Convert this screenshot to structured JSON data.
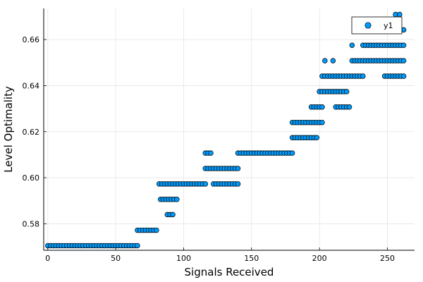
{
  "chart_data": {
    "type": "scatter",
    "title": "",
    "xlabel": "Signals Received",
    "ylabel": "Level Optimality",
    "xlim": [
      -3,
      270
    ],
    "ylim": [
      0.5685,
      0.6735
    ],
    "xticks": [
      0,
      50,
      100,
      150,
      200,
      250
    ],
    "yticks": [
      0.58,
      0.6,
      0.62,
      0.64,
      0.66
    ],
    "ytick_labels": [
      "0.58",
      "0.60",
      "0.62",
      "0.64",
      "0.66"
    ],
    "grid": true,
    "legend": {
      "position": "top-right",
      "entries": [
        "y1"
      ]
    },
    "colors": {
      "marker": "#009AFA",
      "marker_edge": "#000000",
      "grid": "#e5e5e5"
    },
    "series": [
      {
        "name": "y1",
        "points": [
          [
            0,
            0.5705
          ],
          [
            2,
            0.5705
          ],
          [
            4,
            0.5705
          ],
          [
            6,
            0.5705
          ],
          [
            8,
            0.5705
          ],
          [
            10,
            0.5705
          ],
          [
            12,
            0.5705
          ],
          [
            14,
            0.5705
          ],
          [
            16,
            0.5705
          ],
          [
            18,
            0.5705
          ],
          [
            20,
            0.5705
          ],
          [
            22,
            0.5705
          ],
          [
            24,
            0.5705
          ],
          [
            26,
            0.5705
          ],
          [
            28,
            0.5705
          ],
          [
            30,
            0.5705
          ],
          [
            32,
            0.5705
          ],
          [
            34,
            0.5705
          ],
          [
            36,
            0.5705
          ],
          [
            38,
            0.5705
          ],
          [
            40,
            0.5705
          ],
          [
            42,
            0.5705
          ],
          [
            44,
            0.5705
          ],
          [
            46,
            0.5705
          ],
          [
            48,
            0.5705
          ],
          [
            50,
            0.5705
          ],
          [
            52,
            0.5705
          ],
          [
            54,
            0.5705
          ],
          [
            56,
            0.5705
          ],
          [
            58,
            0.5705
          ],
          [
            60,
            0.5705
          ],
          [
            62,
            0.5705
          ],
          [
            64,
            0.5705
          ],
          [
            66,
            0.5705
          ],
          [
            66,
            0.5772
          ],
          [
            68,
            0.5772
          ],
          [
            70,
            0.5772
          ],
          [
            72,
            0.5772
          ],
          [
            74,
            0.5772
          ],
          [
            76,
            0.5772
          ],
          [
            78,
            0.5772
          ],
          [
            80,
            0.5772
          ],
          [
            82,
            0.5973
          ],
          [
            84,
            0.5973
          ],
          [
            86,
            0.5973
          ],
          [
            88,
            0.5973
          ],
          [
            90,
            0.5973
          ],
          [
            92,
            0.5973
          ],
          [
            83,
            0.5906
          ],
          [
            85,
            0.5906
          ],
          [
            87,
            0.5906
          ],
          [
            89,
            0.5906
          ],
          [
            91,
            0.5906
          ],
          [
            93,
            0.5906
          ],
          [
            95,
            0.5906
          ],
          [
            88,
            0.584
          ],
          [
            90,
            0.584
          ],
          [
            92,
            0.584
          ],
          [
            94,
            0.5973
          ],
          [
            96,
            0.5973
          ],
          [
            98,
            0.5973
          ],
          [
            100,
            0.5973
          ],
          [
            102,
            0.5973
          ],
          [
            104,
            0.5973
          ],
          [
            106,
            0.5973
          ],
          [
            108,
            0.5973
          ],
          [
            110,
            0.5973
          ],
          [
            112,
            0.5973
          ],
          [
            114,
            0.5973
          ],
          [
            116,
            0.5973
          ],
          [
            116,
            0.6107
          ],
          [
            118,
            0.6107
          ],
          [
            120,
            0.6107
          ],
          [
            116,
            0.604
          ],
          [
            118,
            0.604
          ],
          [
            120,
            0.604
          ],
          [
            122,
            0.604
          ],
          [
            124,
            0.604
          ],
          [
            126,
            0.604
          ],
          [
            128,
            0.604
          ],
          [
            130,
            0.604
          ],
          [
            132,
            0.604
          ],
          [
            134,
            0.604
          ],
          [
            136,
            0.604
          ],
          [
            138,
            0.604
          ],
          [
            140,
            0.604
          ],
          [
            122,
            0.5973
          ],
          [
            124,
            0.5973
          ],
          [
            126,
            0.5973
          ],
          [
            128,
            0.5973
          ],
          [
            130,
            0.5973
          ],
          [
            132,
            0.5973
          ],
          [
            134,
            0.5973
          ],
          [
            136,
            0.5973
          ],
          [
            138,
            0.5973
          ],
          [
            140,
            0.5973
          ],
          [
            140,
            0.6107
          ],
          [
            142,
            0.6107
          ],
          [
            144,
            0.6107
          ],
          [
            146,
            0.6107
          ],
          [
            148,
            0.6107
          ],
          [
            150,
            0.6107
          ],
          [
            152,
            0.6107
          ],
          [
            154,
            0.6107
          ],
          [
            156,
            0.6107
          ],
          [
            158,
            0.6107
          ],
          [
            160,
            0.6107
          ],
          [
            162,
            0.6107
          ],
          [
            164,
            0.6107
          ],
          [
            166,
            0.6107
          ],
          [
            168,
            0.6107
          ],
          [
            170,
            0.6107
          ],
          [
            172,
            0.6107
          ],
          [
            174,
            0.6107
          ],
          [
            176,
            0.6107
          ],
          [
            178,
            0.6107
          ],
          [
            180,
            0.6107
          ],
          [
            180,
            0.6174
          ],
          [
            182,
            0.6174
          ],
          [
            184,
            0.6174
          ],
          [
            186,
            0.6174
          ],
          [
            188,
            0.6174
          ],
          [
            190,
            0.6174
          ],
          [
            192,
            0.6174
          ],
          [
            194,
            0.6174
          ],
          [
            196,
            0.6174
          ],
          [
            198,
            0.6174
          ],
          [
            180,
            0.624
          ],
          [
            182,
            0.624
          ],
          [
            184,
            0.624
          ],
          [
            186,
            0.624
          ],
          [
            188,
            0.624
          ],
          [
            190,
            0.624
          ],
          [
            192,
            0.624
          ],
          [
            194,
            0.624
          ],
          [
            196,
            0.624
          ],
          [
            198,
            0.624
          ],
          [
            200,
            0.624
          ],
          [
            202,
            0.624
          ],
          [
            194,
            0.6307
          ],
          [
            196,
            0.6307
          ],
          [
            198,
            0.6307
          ],
          [
            200,
            0.6307
          ],
          [
            202,
            0.6307
          ],
          [
            200,
            0.6374
          ],
          [
            202,
            0.6374
          ],
          [
            204,
            0.6374
          ],
          [
            206,
            0.6374
          ],
          [
            208,
            0.6374
          ],
          [
            210,
            0.6374
          ],
          [
            212,
            0.6374
          ],
          [
            214,
            0.6374
          ],
          [
            216,
            0.6374
          ],
          [
            218,
            0.6374
          ],
          [
            220,
            0.6374
          ],
          [
            202,
            0.6441
          ],
          [
            204,
            0.6441
          ],
          [
            206,
            0.6441
          ],
          [
            208,
            0.6441
          ],
          [
            210,
            0.6441
          ],
          [
            212,
            0.6441
          ],
          [
            214,
            0.6441
          ],
          [
            216,
            0.6441
          ],
          [
            218,
            0.6441
          ],
          [
            220,
            0.6441
          ],
          [
            222,
            0.6441
          ],
          [
            224,
            0.6441
          ],
          [
            226,
            0.6441
          ],
          [
            228,
            0.6441
          ],
          [
            230,
            0.6441
          ],
          [
            232,
            0.6441
          ],
          [
            212,
            0.6307
          ],
          [
            214,
            0.6307
          ],
          [
            216,
            0.6307
          ],
          [
            218,
            0.6307
          ],
          [
            220,
            0.6307
          ],
          [
            222,
            0.6307
          ],
          [
            204,
            0.6508
          ],
          [
            210,
            0.6508
          ],
          [
            224,
            0.6508
          ],
          [
            226,
            0.6508
          ],
          [
            228,
            0.6508
          ],
          [
            230,
            0.6508
          ],
          [
            232,
            0.6508
          ],
          [
            234,
            0.6508
          ],
          [
            236,
            0.6508
          ],
          [
            238,
            0.6508
          ],
          [
            240,
            0.6508
          ],
          [
            242,
            0.6508
          ],
          [
            244,
            0.6508
          ],
          [
            246,
            0.6508
          ],
          [
            248,
            0.6508
          ],
          [
            250,
            0.6508
          ],
          [
            252,
            0.6508
          ],
          [
            254,
            0.6508
          ],
          [
            256,
            0.6508
          ],
          [
            258,
            0.6508
          ],
          [
            260,
            0.6508
          ],
          [
            262,
            0.6508
          ],
          [
            224,
            0.6575
          ],
          [
            232,
            0.6575
          ],
          [
            234,
            0.6575
          ],
          [
            236,
            0.6575
          ],
          [
            238,
            0.6575
          ],
          [
            240,
            0.6575
          ],
          [
            242,
            0.6575
          ],
          [
            244,
            0.6575
          ],
          [
            246,
            0.6575
          ],
          [
            248,
            0.6575
          ],
          [
            250,
            0.6575
          ],
          [
            252,
            0.6575
          ],
          [
            254,
            0.6575
          ],
          [
            256,
            0.6575
          ],
          [
            258,
            0.6575
          ],
          [
            260,
            0.6575
          ],
          [
            262,
            0.6575
          ],
          [
            248,
            0.6441
          ],
          [
            250,
            0.6441
          ],
          [
            252,
            0.6441
          ],
          [
            254,
            0.6441
          ],
          [
            256,
            0.6441
          ],
          [
            258,
            0.6441
          ],
          [
            260,
            0.6441
          ],
          [
            262,
            0.6441
          ],
          [
            256,
            0.6642
          ],
          [
            258,
            0.6642
          ],
          [
            262,
            0.6642
          ],
          [
            256,
            0.6709
          ],
          [
            259,
            0.6709
          ]
        ]
      }
    ]
  }
}
